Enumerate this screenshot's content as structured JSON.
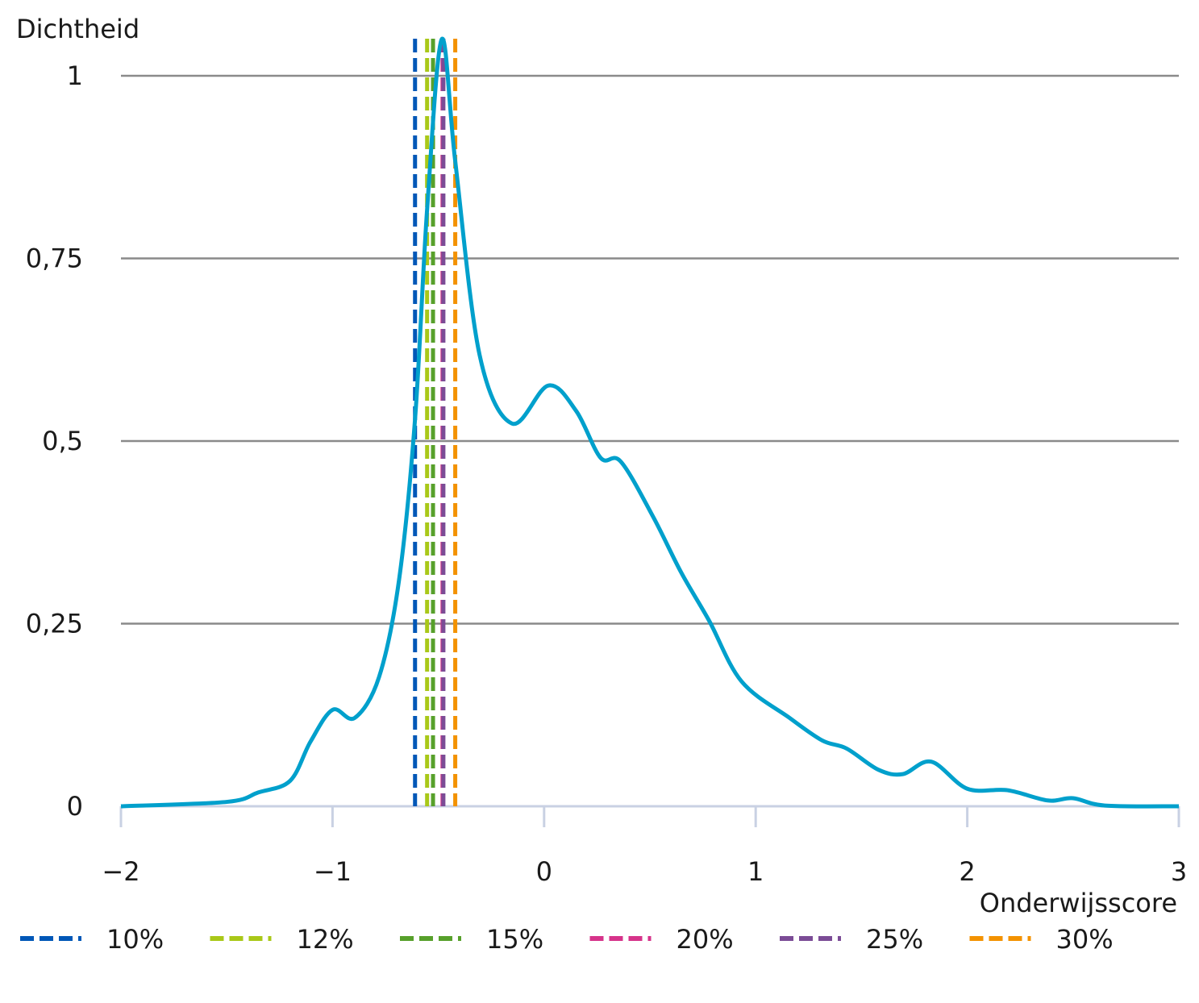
{
  "chart_data": {
    "type": "line",
    "title": "",
    "ylabel": "Dichtheid",
    "xlabel": "Onderwijsscore",
    "xlim": [
      -2,
      3
    ],
    "ylim": [
      0,
      1
    ],
    "x_ticks": [
      -2,
      -1,
      0,
      1,
      2,
      3
    ],
    "x_tick_labels": [
      "−2",
      "−1",
      "0",
      "1",
      "2",
      "3"
    ],
    "y_ticks": [
      0,
      0.25,
      0.5,
      0.75,
      1
    ],
    "y_tick_labels": [
      "0",
      "0,25",
      "0,5",
      "0,75",
      "1"
    ],
    "grid": "horizontal",
    "density_curve": {
      "color": "#00a0cc",
      "x": [
        -2,
        -1.5,
        -1.35,
        -1.2,
        -1.105,
        -1,
        -0.895,
        -0.78,
        -0.686,
        -0.61,
        -0.553,
        -0.484,
        -0.42,
        -0.305,
        -0.152,
        0.02,
        0.152,
        0.267,
        0.362,
        0.514,
        0.648,
        0.78,
        0.933,
        1.16,
        1.315,
        1.43,
        1.58,
        1.695,
        1.83,
        2.0,
        2.19,
        2.38,
        2.5,
        2.65,
        3
      ],
      "y": [
        0,
        0.006,
        0.019,
        0.035,
        0.088,
        0.132,
        0.121,
        0.177,
        0.309,
        0.53,
        0.817,
        1.05,
        0.883,
        0.618,
        0.524,
        0.576,
        0.541,
        0.477,
        0.472,
        0.397,
        0.32,
        0.254,
        0.171,
        0.121,
        0.09,
        0.079,
        0.05,
        0.044,
        0.061,
        0.024,
        0.022,
        0.008,
        0.011,
        0.001,
        0
      ]
    },
    "thresholds": [
      {
        "name": "10%",
        "x": -0.61,
        "color": "#0057b7"
      },
      {
        "name": "12%",
        "x": -0.553,
        "color": "#a9c818"
      },
      {
        "name": "15%",
        "x": -0.525,
        "color": "#57a02b"
      },
      {
        "name": "20%",
        "x": -0.48,
        "color": "#d6338a"
      },
      {
        "name": "25%",
        "x": -0.476,
        "color": "#7b4c96"
      },
      {
        "name": "30%",
        "x": -0.42,
        "color": "#f39200"
      }
    ],
    "legend_position": "bottom"
  }
}
